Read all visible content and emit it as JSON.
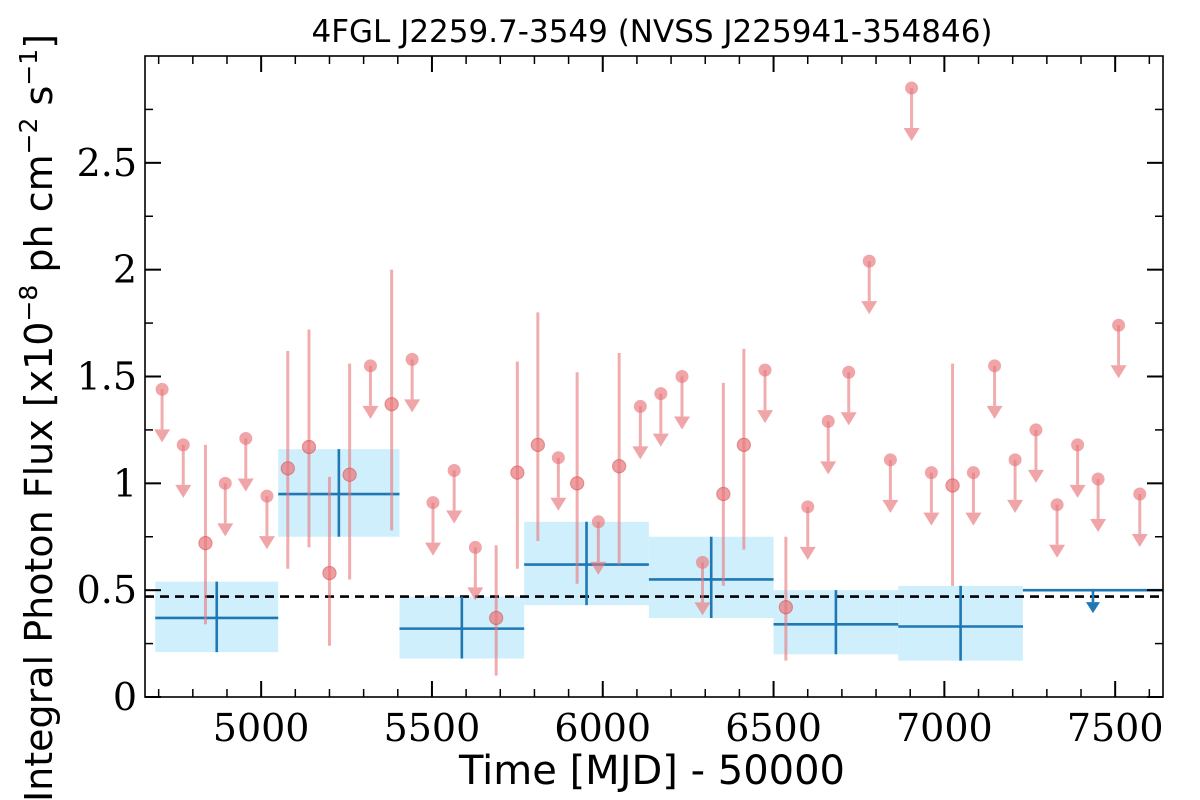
{
  "chart_data": {
    "type": "scatter",
    "title": "4FGL J2259.7-3549 (NVSS J225941-354846)",
    "xlabel": "Time [MJD] - 50000",
    "ylabel_main": "Integral Photon Flux [x10",
    "ylabel_exp1": "−8",
    "ylabel_mid": " ph cm",
    "ylabel_exp2": "−2",
    "ylabel_mid2": " s",
    "ylabel_exp3": "−1",
    "ylabel_end": "]",
    "xlim": [
      4660,
      7640
    ],
    "ylim": [
      0,
      3.0
    ],
    "xticks": [
      5000,
      5500,
      6000,
      6500,
      7000,
      7500
    ],
    "xtick_labels": [
      "5000",
      "5500",
      "6000",
      "6500",
      "7000",
      "7500"
    ],
    "yticks": [
      0,
      0.5,
      1,
      1.5,
      2,
      2.5
    ],
    "ytick_labels": [
      "0",
      "0.5",
      "1",
      "1.5",
      "2",
      "2.5"
    ],
    "grid": false,
    "colors": {
      "monthly": "#e8777a",
      "yearly": "#1f77b4",
      "yearly_band": "#cdeefc",
      "mean_line": "#000000"
    },
    "mean_flux": 0.47,
    "series": [
      {
        "kind": "short-bin detections",
        "points": [
          {
            "x": 4837,
            "y": 0.72,
            "lo": 0.34,
            "hi": 1.18
          },
          {
            "x": 5078,
            "y": 1.07,
            "lo": 0.6,
            "hi": 1.62
          },
          {
            "x": 5140,
            "y": 1.17,
            "lo": 0.7,
            "hi": 1.72
          },
          {
            "x": 5200,
            "y": 0.58,
            "lo": 0.24,
            "hi": 1.03
          },
          {
            "x": 5259,
            "y": 1.04,
            "lo": 0.55,
            "hi": 1.56
          },
          {
            "x": 5382,
            "y": 1.37,
            "lo": 0.78,
            "hi": 2.0
          },
          {
            "x": 5688,
            "y": 0.37,
            "lo": 0.1,
            "hi": 0.71
          },
          {
            "x": 5750,
            "y": 1.05,
            "lo": 0.6,
            "hi": 1.57
          },
          {
            "x": 5810,
            "y": 1.18,
            "lo": 0.73,
            "hi": 1.8
          },
          {
            "x": 5925,
            "y": 1.0,
            "lo": 0.53,
            "hi": 1.52
          },
          {
            "x": 6048,
            "y": 1.08,
            "lo": 0.62,
            "hi": 1.61
          },
          {
            "x": 6353,
            "y": 0.95,
            "lo": 0.52,
            "hi": 1.47
          },
          {
            "x": 6413,
            "y": 1.18,
            "lo": 0.69,
            "hi": 1.63
          },
          {
            "x": 6536,
            "y": 0.42,
            "lo": 0.17,
            "hi": 0.75
          },
          {
            "x": 7024,
            "y": 0.99,
            "lo": 0.52,
            "hi": 1.56
          }
        ]
      },
      {
        "kind": "short-bin upper limits",
        "values": [
          [
            4710,
            1.44
          ],
          [
            4772,
            1.18
          ],
          [
            4895,
            1.0
          ],
          [
            4955,
            1.21
          ],
          [
            5017,
            0.94
          ],
          [
            5320,
            1.55
          ],
          [
            5442,
            1.58
          ],
          [
            5503,
            0.91
          ],
          [
            5565,
            1.06
          ],
          [
            5627,
            0.7
          ],
          [
            5870,
            1.12
          ],
          [
            5987,
            0.82
          ],
          [
            6110,
            1.36
          ],
          [
            6170,
            1.42
          ],
          [
            6232,
            1.5
          ],
          [
            6292,
            0.63
          ],
          [
            6475,
            1.53
          ],
          [
            6600,
            0.89
          ],
          [
            6660,
            1.29
          ],
          [
            6720,
            1.52
          ],
          [
            6780,
            2.04
          ],
          [
            6842,
            1.11
          ],
          [
            6904,
            2.85
          ],
          [
            6962,
            1.05
          ],
          [
            7085,
            1.05
          ],
          [
            7147,
            1.55
          ],
          [
            7207,
            1.11
          ],
          [
            7268,
            1.25
          ],
          [
            7330,
            0.9
          ],
          [
            7390,
            1.18
          ],
          [
            7450,
            1.02
          ],
          [
            7510,
            1.74
          ],
          [
            7572,
            0.95
          ]
        ]
      },
      {
        "kind": "long-bin detections",
        "bins": [
          {
            "x0": 4690,
            "x1": 5050,
            "y": 0.37,
            "lo": 0.21,
            "hi": 0.54
          },
          {
            "x0": 5050,
            "x1": 5405,
            "y": 0.95,
            "lo": 0.75,
            "hi": 1.16
          },
          {
            "x0": 5405,
            "x1": 5770,
            "y": 0.32,
            "lo": 0.18,
            "hi": 0.47
          },
          {
            "x0": 5770,
            "x1": 6135,
            "y": 0.62,
            "lo": 0.43,
            "hi": 0.82
          },
          {
            "x0": 6135,
            "x1": 6500,
            "y": 0.55,
            "lo": 0.37,
            "hi": 0.75
          },
          {
            "x0": 6500,
            "x1": 6865,
            "y": 0.34,
            "lo": 0.2,
            "hi": 0.5
          },
          {
            "x0": 6865,
            "x1": 7230,
            "y": 0.33,
            "lo": 0.17,
            "hi": 0.52
          }
        ]
      },
      {
        "kind": "long-bin upper limit",
        "bins": [
          {
            "x0": 7230,
            "x1": 7640,
            "y": 0.5
          }
        ]
      }
    ]
  }
}
